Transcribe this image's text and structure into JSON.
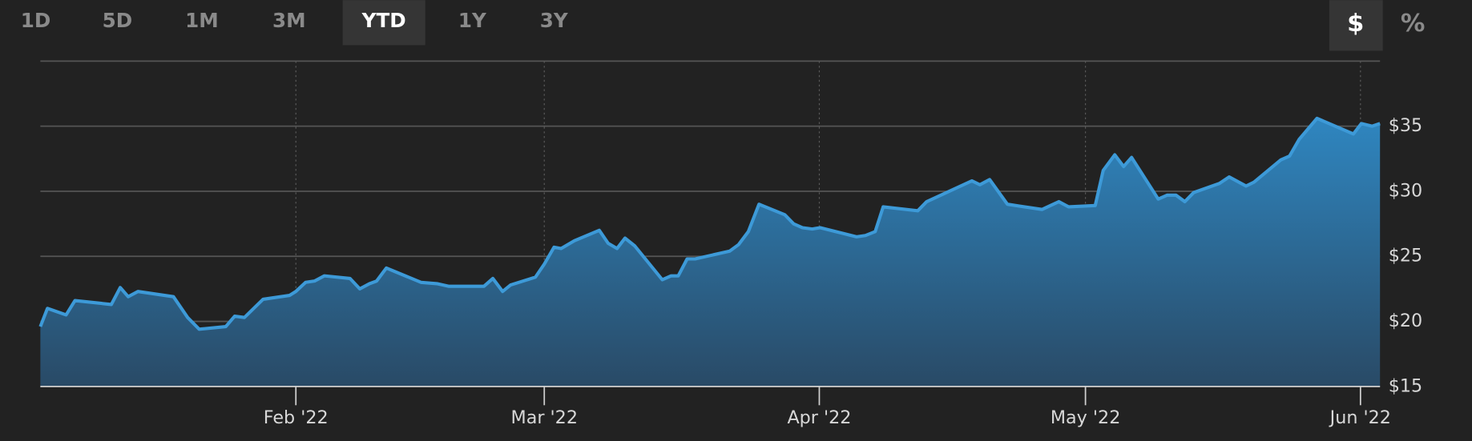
{
  "range_buttons": [
    "1D",
    "5D",
    "1M",
    "3M",
    "YTD",
    "1Y",
    "3Y"
  ],
  "active_range": 4,
  "unit_buttons": [
    "$",
    "%"
  ],
  "active_unit": 0,
  "chart_data": {
    "type": "area",
    "x": [
      2.2,
      3.0,
      5.1,
      6.1,
      10.2,
      11.2,
      12.1,
      13.2,
      17.2,
      18.8,
      20.1,
      23.1,
      24.1,
      25.2,
      27.3,
      30.3,
      31.0,
      32.1,
      33.1,
      34.2,
      37.1,
      38.2,
      39.3,
      40.1,
      41.2,
      45.1,
      46.9,
      48.2,
      52.2,
      53.2,
      54.3,
      55.2,
      58.0,
      59.0,
      60.1,
      60.9,
      62.4,
      65.2,
      66.2,
      67.2,
      68.1,
      69.2,
      72.3,
      73.3,
      74.1,
      75.1,
      76.0,
      79.9,
      80.9,
      82.0,
      83.2,
      86.1,
      87.1,
      88.1,
      89.2,
      90.1,
      94.2,
      95.2,
      96.3,
      97.2,
      101.1,
      102.1,
      107.2,
      108.1,
      109.2,
      111.2,
      115.1,
      117.0,
      118.1,
      121.1,
      122.0,
      123.3,
      124.3,
      125.2,
      128.2,
      129.2,
      130.2,
      131.2,
      132.2,
      135.1,
      136.2,
      138.1,
      139.0,
      142.0,
      143.0,
      144.1,
      146.1,
      150.2,
      151.1,
      152.3,
      153.2
    ],
    "values": [
      19.6,
      21.0,
      20.5,
      21.6,
      21.3,
      22.6,
      21.9,
      22.3,
      21.9,
      20.3,
      19.4,
      19.6,
      20.4,
      20.3,
      21.7,
      22.0,
      22.3,
      23.0,
      23.1,
      23.5,
      23.3,
      22.5,
      22.9,
      23.1,
      24.1,
      23.0,
      22.9,
      22.7,
      22.7,
      23.3,
      22.3,
      22.8,
      23.4,
      24.4,
      25.7,
      25.6,
      26.2,
      27.0,
      26.0,
      25.6,
      26.4,
      25.8,
      23.2,
      23.5,
      23.5,
      24.8,
      24.8,
      25.4,
      25.9,
      26.9,
      29.0,
      28.2,
      27.5,
      27.2,
      27.1,
      27.2,
      26.5,
      26.6,
      26.9,
      28.8,
      28.5,
      29.2,
      30.8,
      30.5,
      30.9,
      29.0,
      28.6,
      29.2,
      28.8,
      28.9,
      31.6,
      32.8,
      31.9,
      32.6,
      29.4,
      29.7,
      29.7,
      29.2,
      29.9,
      30.6,
      31.1,
      30.4,
      30.7,
      32.4,
      32.7,
      34.0,
      35.6,
      34.4,
      35.2,
      35.0,
      35.2
    ],
    "color": "#3d9ad8",
    "xlim": [
      2.2,
      153.2
    ],
    "xticks": [
      {
        "value": 31,
        "label": "Feb '22"
      },
      {
        "value": 59,
        "label": "Mar '22"
      },
      {
        "value": 90,
        "label": "Apr '22"
      },
      {
        "value": 120,
        "label": "May '22"
      },
      {
        "value": 151,
        "label": "Jun '22"
      }
    ],
    "ylim": [
      15,
      40
    ],
    "yticks": [
      {
        "value": 15,
        "label": "$15"
      },
      {
        "value": 20,
        "label": "$20"
      },
      {
        "value": 25,
        "label": "$25"
      },
      {
        "value": 30,
        "label": "$30"
      },
      {
        "value": 35,
        "label": "$35"
      }
    ],
    "grid": true
  }
}
